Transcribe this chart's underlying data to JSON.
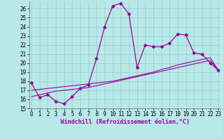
{
  "xlabel": "Windchill (Refroidissement éolien,°C)",
  "background_color": "#b8e8e8",
  "grid_color": "#99cccc",
  "line_color": "#990099",
  "x_values": [
    0,
    1,
    2,
    3,
    4,
    5,
    6,
    7,
    8,
    9,
    10,
    11,
    12,
    13,
    14,
    15,
    16,
    17,
    18,
    19,
    20,
    21,
    22,
    23
  ],
  "y_main": [
    17.8,
    16.2,
    16.5,
    15.8,
    15.5,
    16.3,
    17.2,
    17.6,
    20.5,
    24.0,
    26.3,
    26.6,
    25.4,
    19.5,
    22.0,
    21.8,
    21.8,
    22.2,
    23.2,
    23.1,
    21.1,
    21.0,
    20.0,
    19.2
  ],
  "y_linear1": [
    17.0,
    17.1,
    17.2,
    17.3,
    17.4,
    17.5,
    17.6,
    17.7,
    17.8,
    17.9,
    18.0,
    18.2,
    18.4,
    18.6,
    18.8,
    19.0,
    19.3,
    19.5,
    19.8,
    20.0,
    20.2,
    20.4,
    20.6,
    19.2
  ],
  "y_linear2": [
    16.3,
    16.5,
    16.7,
    16.9,
    17.0,
    17.1,
    17.2,
    17.3,
    17.5,
    17.7,
    17.9,
    18.1,
    18.3,
    18.5,
    18.7,
    18.9,
    19.1,
    19.3,
    19.5,
    19.7,
    19.9,
    20.1,
    20.3,
    19.2
  ],
  "ylim": [
    15,
    26.8
  ],
  "xlim": [
    -0.3,
    23.3
  ],
  "yticks": [
    15,
    16,
    17,
    18,
    19,
    20,
    21,
    22,
    23,
    24,
    25,
    26
  ],
  "xticks": [
    0,
    1,
    2,
    3,
    4,
    5,
    6,
    7,
    8,
    9,
    10,
    11,
    12,
    13,
    14,
    15,
    16,
    17,
    18,
    19,
    20,
    21,
    22,
    23
  ],
  "tick_fontsize": 5.5,
  "xlabel_fontsize": 6.0
}
